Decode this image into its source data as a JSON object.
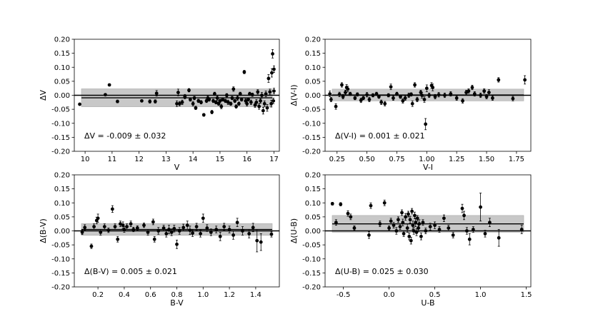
{
  "chart_data": [
    {
      "type": "scatter",
      "xlabel": "V",
      "ylabel": "ΔV",
      "annotation": "ΔV = -0.009 ± 0.032",
      "mean": -0.009,
      "sigma": 0.032,
      "xlim": [
        9.6,
        17.2
      ],
      "ylim": [
        -0.2,
        0.2
      ],
      "xticks": [
        10,
        11,
        12,
        13,
        14,
        15,
        16,
        17
      ],
      "xtick_labels": [
        "10",
        "11",
        "12",
        "13",
        "14",
        "15",
        "16",
        "17"
      ],
      "yticks": [
        -0.2,
        -0.15,
        -0.1,
        -0.05,
        0.0,
        0.05,
        0.1,
        0.15,
        0.2
      ],
      "ytick_labels": [
        "-0.20",
        "-0.15",
        "-0.10",
        "-0.05",
        "0.00",
        "0.05",
        "0.10",
        "0.15",
        "0.20"
      ],
      "points": [
        [
          9.8,
          -0.032,
          0.004
        ],
        [
          10.75,
          0.002,
          0.004
        ],
        [
          10.9,
          0.037,
          0.004
        ],
        [
          11.2,
          -0.022,
          0.005
        ],
        [
          12.1,
          -0.02,
          0.004
        ],
        [
          12.4,
          -0.022,
          0.006
        ],
        [
          12.6,
          -0.022,
          0.006
        ],
        [
          12.65,
          0.007,
          0.01
        ],
        [
          13.4,
          -0.03,
          0.01
        ],
        [
          13.45,
          0.01,
          0.012
        ],
        [
          13.5,
          -0.03,
          0.008
        ],
        [
          13.6,
          -0.025,
          0.008
        ],
        [
          13.7,
          -0.005,
          0.008
        ],
        [
          13.85,
          0.018,
          0.006
        ],
        [
          13.9,
          -0.015,
          0.006
        ],
        [
          14.0,
          -0.03,
          0.008
        ],
        [
          14.05,
          -0.01,
          0.006
        ],
        [
          14.1,
          -0.045,
          0.006
        ],
        [
          14.2,
          -0.02,
          0.006
        ],
        [
          14.3,
          -0.025,
          0.006
        ],
        [
          14.4,
          -0.07,
          0.005
        ],
        [
          14.5,
          -0.02,
          0.006
        ],
        [
          14.55,
          -0.01,
          0.008
        ],
        [
          14.6,
          -0.015,
          0.006
        ],
        [
          14.7,
          -0.06,
          0.006
        ],
        [
          14.75,
          -0.02,
          0.006
        ],
        [
          14.8,
          0.005,
          0.006
        ],
        [
          14.85,
          -0.025,
          0.006
        ],
        [
          14.9,
          -0.01,
          0.008
        ],
        [
          14.95,
          -0.03,
          0.006
        ],
        [
          15.0,
          -0.02,
          0.006
        ],
        [
          15.05,
          -0.04,
          0.008
        ],
        [
          15.1,
          -0.015,
          0.006
        ],
        [
          15.2,
          -0.02,
          0.006
        ],
        [
          15.25,
          0.0,
          0.006
        ],
        [
          15.3,
          -0.025,
          0.008
        ],
        [
          15.4,
          -0.03,
          0.006
        ],
        [
          15.45,
          -0.01,
          0.006
        ],
        [
          15.5,
          0.022,
          0.008
        ],
        [
          15.55,
          -0.02,
          0.006
        ],
        [
          15.6,
          -0.04,
          0.006
        ],
        [
          15.65,
          -0.01,
          0.008
        ],
        [
          15.7,
          -0.03,
          0.006
        ],
        [
          15.75,
          0.005,
          0.006
        ],
        [
          15.8,
          -0.015,
          0.006
        ],
        [
          15.9,
          0.083,
          0.006
        ],
        [
          15.95,
          -0.02,
          0.008
        ],
        [
          16.0,
          -0.03,
          0.008
        ],
        [
          16.05,
          -0.015,
          0.006
        ],
        [
          16.1,
          0.005,
          0.006
        ],
        [
          16.15,
          -0.025,
          0.008
        ],
        [
          16.2,
          0.002,
          0.006
        ],
        [
          16.3,
          -0.035,
          0.008
        ],
        [
          16.35,
          -0.025,
          0.01
        ],
        [
          16.4,
          0.012,
          0.008
        ],
        [
          16.45,
          -0.04,
          0.01
        ],
        [
          16.5,
          -0.02,
          0.008
        ],
        [
          16.55,
          0.0,
          0.01
        ],
        [
          16.6,
          -0.055,
          0.012
        ],
        [
          16.65,
          -0.03,
          0.01
        ],
        [
          16.7,
          0.005,
          0.01
        ],
        [
          16.75,
          -0.045,
          0.012
        ],
        [
          16.8,
          0.06,
          0.014
        ],
        [
          16.85,
          0.012,
          0.01
        ],
        [
          16.9,
          -0.03,
          0.012
        ],
        [
          16.92,
          0.08,
          0.015
        ],
        [
          16.95,
          0.148,
          0.015
        ],
        [
          17.0,
          0.093,
          0.012
        ],
        [
          17.0,
          0.015,
          0.01
        ],
        [
          16.98,
          -0.02,
          0.01
        ]
      ]
    },
    {
      "type": "scatter",
      "xlabel": "V-I",
      "ylabel": "Δ(V-I)",
      "annotation": "Δ(V-I) = 0.001 ± 0.021",
      "mean": 0.001,
      "sigma": 0.021,
      "xlim": [
        0.15,
        1.87
      ],
      "ylim": [
        -0.2,
        0.2
      ],
      "xticks": [
        0.25,
        0.5,
        0.75,
        1.0,
        1.25,
        1.5,
        1.75
      ],
      "xtick_labels": [
        "0.25",
        "0.50",
        "0.75",
        "1.00",
        "1.25",
        "1.50",
        "1.75"
      ],
      "yticks": [
        -0.2,
        -0.15,
        -0.1,
        -0.05,
        0.0,
        0.05,
        0.1,
        0.15,
        0.2
      ],
      "ytick_labels": [
        "-0.20",
        "-0.15",
        "-0.10",
        "-0.05",
        "0.00",
        "0.05",
        "0.10",
        "0.15",
        "0.20"
      ],
      "points": [
        [
          0.19,
          0.005,
          0.01
        ],
        [
          0.2,
          -0.015,
          0.008
        ],
        [
          0.24,
          -0.04,
          0.01
        ],
        [
          0.27,
          0.003,
          0.008
        ],
        [
          0.29,
          0.037,
          0.008
        ],
        [
          0.3,
          -0.005,
          0.008
        ],
        [
          0.32,
          0.01,
          0.008
        ],
        [
          0.33,
          0.028,
          0.01
        ],
        [
          0.34,
          0.022,
          0.01
        ],
        [
          0.36,
          0.005,
          0.006
        ],
        [
          0.4,
          -0.01,
          0.006
        ],
        [
          0.42,
          0.003,
          0.006
        ],
        [
          0.45,
          -0.018,
          0.008
        ],
        [
          0.47,
          -0.01,
          0.006
        ],
        [
          0.5,
          0.002,
          0.008
        ],
        [
          0.52,
          -0.015,
          0.008
        ],
        [
          0.55,
          0.0,
          0.006
        ],
        [
          0.58,
          0.005,
          0.006
        ],
        [
          0.6,
          -0.005,
          0.006
        ],
        [
          0.62,
          -0.025,
          0.008
        ],
        [
          0.65,
          -0.03,
          0.008
        ],
        [
          0.68,
          0.0,
          0.006
        ],
        [
          0.7,
          0.03,
          0.01
        ],
        [
          0.72,
          -0.01,
          0.008
        ],
        [
          0.75,
          0.005,
          0.006
        ],
        [
          0.78,
          -0.005,
          0.006
        ],
        [
          0.8,
          -0.02,
          0.008
        ],
        [
          0.82,
          -0.01,
          0.008
        ],
        [
          0.85,
          0.0,
          0.008
        ],
        [
          0.87,
          0.003,
          0.006
        ],
        [
          0.88,
          -0.03,
          0.01
        ],
        [
          0.9,
          0.037,
          0.008
        ],
        [
          0.92,
          -0.015,
          0.008
        ],
        [
          0.95,
          0.01,
          0.008
        ],
        [
          0.96,
          0.0,
          0.01
        ],
        [
          0.98,
          -0.015,
          0.01
        ],
        [
          0.99,
          -0.103,
          0.02
        ],
        [
          1.0,
          0.025,
          0.012
        ],
        [
          1.02,
          0.0,
          0.008
        ],
        [
          1.04,
          0.035,
          0.01
        ],
        [
          1.05,
          0.028,
          0.012
        ],
        [
          1.07,
          -0.005,
          0.008
        ],
        [
          1.1,
          0.002,
          0.008
        ],
        [
          1.15,
          0.0,
          0.008
        ],
        [
          1.2,
          0.005,
          0.008
        ],
        [
          1.25,
          -0.01,
          0.008
        ],
        [
          1.3,
          -0.02,
          0.008
        ],
        [
          1.33,
          0.01,
          0.008
        ],
        [
          1.35,
          0.015,
          0.008
        ],
        [
          1.38,
          0.028,
          0.008
        ],
        [
          1.4,
          0.005,
          0.008
        ],
        [
          1.45,
          0.0,
          0.008
        ],
        [
          1.48,
          0.015,
          0.008
        ],
        [
          1.5,
          -0.005,
          0.008
        ],
        [
          1.52,
          0.01,
          0.01
        ],
        [
          1.55,
          -0.01,
          0.008
        ],
        [
          1.6,
          0.055,
          0.008
        ],
        [
          1.72,
          -0.012,
          0.008
        ],
        [
          1.82,
          0.055,
          0.015
        ]
      ]
    },
    {
      "type": "scatter",
      "xlabel": "B-V",
      "ylabel": "Δ(B-V)",
      "annotation": "Δ(B-V) = 0.005 ± 0.021",
      "mean": 0.005,
      "sigma": 0.021,
      "xlim": [
        0.02,
        1.58
      ],
      "ylim": [
        -0.2,
        0.2
      ],
      "xticks": [
        0.2,
        0.4,
        0.6,
        0.8,
        1.0,
        1.2,
        1.4
      ],
      "xtick_labels": [
        "0.2",
        "0.4",
        "0.6",
        "0.8",
        "1.0",
        "1.2",
        "1.4"
      ],
      "yticks": [
        -0.2,
        -0.15,
        -0.1,
        -0.05,
        0.0,
        0.05,
        0.1,
        0.15,
        0.2
      ],
      "ytick_labels": [
        "-0.20",
        "-0.15",
        "-0.10",
        "-0.05",
        "0.00",
        "0.05",
        "0.10",
        "0.15",
        "0.20"
      ],
      "points": [
        [
          0.08,
          -0.005,
          0.008
        ],
        [
          0.1,
          0.012,
          0.01
        ],
        [
          0.15,
          -0.055,
          0.008
        ],
        [
          0.17,
          0.015,
          0.01
        ],
        [
          0.19,
          0.037,
          0.012
        ],
        [
          0.2,
          0.045,
          0.015
        ],
        [
          0.22,
          -0.005,
          0.01
        ],
        [
          0.25,
          0.015,
          0.01
        ],
        [
          0.28,
          0.002,
          0.008
        ],
        [
          0.31,
          0.078,
          0.012
        ],
        [
          0.33,
          0.015,
          0.01
        ],
        [
          0.35,
          -0.03,
          0.01
        ],
        [
          0.37,
          0.025,
          0.01
        ],
        [
          0.39,
          0.02,
          0.012
        ],
        [
          0.4,
          0.005,
          0.01
        ],
        [
          0.42,
          0.015,
          0.01
        ],
        [
          0.45,
          0.025,
          0.01
        ],
        [
          0.47,
          0.005,
          0.008
        ],
        [
          0.5,
          0.01,
          0.008
        ],
        [
          0.55,
          0.02,
          0.008
        ],
        [
          0.58,
          -0.005,
          0.01
        ],
        [
          0.62,
          0.032,
          0.01
        ],
        [
          0.63,
          -0.03,
          0.01
        ],
        [
          0.66,
          0.0,
          0.012
        ],
        [
          0.7,
          0.01,
          0.01
        ],
        [
          0.72,
          -0.01,
          0.012
        ],
        [
          0.74,
          0.005,
          0.015
        ],
        [
          0.76,
          -0.005,
          0.012
        ],
        [
          0.78,
          0.008,
          0.012
        ],
        [
          0.8,
          -0.048,
          0.015
        ],
        [
          0.82,
          0.0,
          0.012
        ],
        [
          0.85,
          0.012,
          0.012
        ],
        [
          0.88,
          0.02,
          0.015
        ],
        [
          0.9,
          0.002,
          0.015
        ],
        [
          0.92,
          -0.008,
          0.012
        ],
        [
          0.95,
          0.015,
          0.012
        ],
        [
          0.98,
          -0.01,
          0.012
        ],
        [
          1.0,
          0.045,
          0.015
        ],
        [
          1.03,
          0.01,
          0.012
        ],
        [
          1.06,
          -0.005,
          0.012
        ],
        [
          1.1,
          0.005,
          0.012
        ],
        [
          1.13,
          -0.02,
          0.015
        ],
        [
          1.16,
          0.015,
          0.012
        ],
        [
          1.2,
          0.005,
          0.012
        ],
        [
          1.23,
          -0.015,
          0.015
        ],
        [
          1.26,
          0.03,
          0.015
        ],
        [
          1.3,
          0.0,
          0.015
        ],
        [
          1.35,
          -0.01,
          0.015
        ],
        [
          1.38,
          0.012,
          0.015
        ],
        [
          1.41,
          -0.035,
          0.04
        ],
        [
          1.44,
          -0.04,
          0.03
        ],
        [
          1.52,
          -0.012,
          0.01
        ]
      ]
    },
    {
      "type": "scatter",
      "xlabel": "U-B",
      "ylabel": "Δ(U-B)",
      "annotation": "Δ(U-B) = 0.025 ± 0.030",
      "mean": 0.025,
      "sigma": 0.03,
      "xlim": [
        -0.7,
        1.55
      ],
      "ylim": [
        -0.2,
        0.2
      ],
      "xticks": [
        -0.5,
        0.0,
        0.5,
        1.0,
        1.5
      ],
      "xtick_labels": [
        "-0.5",
        "0.0",
        "0.5",
        "1.0",
        "1.5"
      ],
      "yticks": [
        -0.2,
        -0.15,
        -0.1,
        -0.05,
        0.0,
        0.05,
        0.1,
        0.15,
        0.2
      ],
      "ytick_labels": [
        "-0.20",
        "-0.15",
        "-0.10",
        "-0.05",
        "0.00",
        "0.05",
        "0.10",
        "0.15",
        "0.20"
      ],
      "points": [
        [
          -0.62,
          0.097,
          0.005
        ],
        [
          -0.58,
          0.03,
          0.01
        ],
        [
          -0.53,
          0.095,
          0.006
        ],
        [
          -0.45,
          0.062,
          0.01
        ],
        [
          -0.42,
          0.05,
          0.01
        ],
        [
          -0.38,
          0.01,
          0.008
        ],
        [
          -0.22,
          -0.015,
          0.012
        ],
        [
          -0.2,
          0.09,
          0.01
        ],
        [
          -0.1,
          0.025,
          0.01
        ],
        [
          -0.05,
          0.1,
          0.01
        ],
        [
          0.0,
          0.01,
          0.008
        ],
        [
          0.02,
          0.035,
          0.01
        ],
        [
          0.05,
          0.02,
          0.01
        ],
        [
          0.08,
          0.0,
          0.012
        ],
        [
          0.1,
          0.04,
          0.01
        ],
        [
          0.12,
          0.015,
          0.01
        ],
        [
          0.14,
          0.065,
          0.01
        ],
        [
          0.15,
          0.03,
          0.012
        ],
        [
          0.16,
          -0.01,
          0.01
        ],
        [
          0.18,
          0.05,
          0.012
        ],
        [
          0.2,
          0.01,
          0.015
        ],
        [
          0.21,
          0.06,
          0.01
        ],
        [
          0.22,
          -0.02,
          0.012
        ],
        [
          0.23,
          0.04,
          0.012
        ],
        [
          0.24,
          -0.035,
          0.012
        ],
        [
          0.25,
          0.07,
          0.01
        ],
        [
          0.26,
          0.02,
          0.015
        ],
        [
          0.27,
          0.0,
          0.012
        ],
        [
          0.28,
          0.055,
          0.012
        ],
        [
          0.29,
          0.03,
          0.015
        ],
        [
          0.3,
          -0.005,
          0.012
        ],
        [
          0.31,
          0.045,
          0.01
        ],
        [
          0.32,
          0.01,
          0.012
        ],
        [
          0.33,
          0.025,
          0.015
        ],
        [
          0.35,
          -0.02,
          0.012
        ],
        [
          0.37,
          0.03,
          0.01
        ],
        [
          0.4,
          0.0,
          0.01
        ],
        [
          0.45,
          0.015,
          0.012
        ],
        [
          0.5,
          0.02,
          0.012
        ],
        [
          0.55,
          0.005,
          0.01
        ],
        [
          0.6,
          0.045,
          0.012
        ],
        [
          0.65,
          0.01,
          0.01
        ],
        [
          0.7,
          -0.015,
          0.01
        ],
        [
          0.8,
          0.08,
          0.015
        ],
        [
          0.82,
          0.055,
          0.015
        ],
        [
          0.85,
          0.0,
          0.012
        ],
        [
          0.88,
          -0.03,
          0.02
        ],
        [
          0.92,
          0.005,
          0.01
        ],
        [
          1.0,
          0.085,
          0.05
        ],
        [
          1.05,
          -0.01,
          0.012
        ],
        [
          1.1,
          0.03,
          0.015
        ],
        [
          1.2,
          -0.025,
          0.03
        ],
        [
          1.45,
          0.005,
          0.015
        ]
      ]
    }
  ]
}
